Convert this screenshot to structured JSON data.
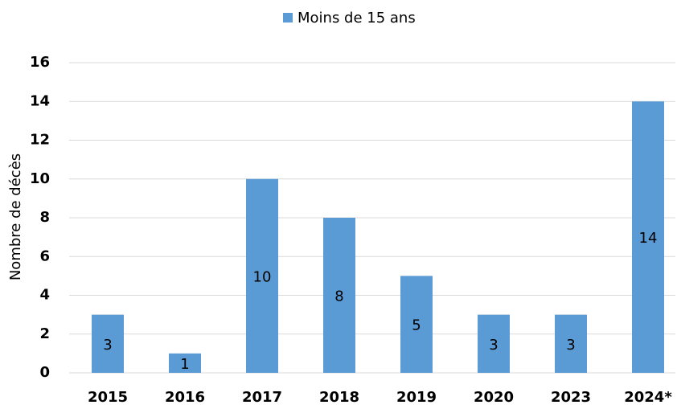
{
  "chart_data": {
    "type": "bar",
    "ylabel": "Nombre de décès",
    "categories": [
      "2015",
      "2016",
      "2017",
      "2018",
      "2019",
      "2020",
      "2023",
      "2024*"
    ],
    "series": [
      {
        "name": "Moins de 15 ans",
        "color": "#5b9bd5",
        "values": [
          3,
          1,
          10,
          8,
          5,
          3,
          3,
          14
        ]
      }
    ],
    "ylim": [
      0,
      16
    ],
    "yticks": [
      0,
      2,
      4,
      6,
      8,
      10,
      12,
      14,
      16
    ],
    "grid": true,
    "legend": "top"
  }
}
